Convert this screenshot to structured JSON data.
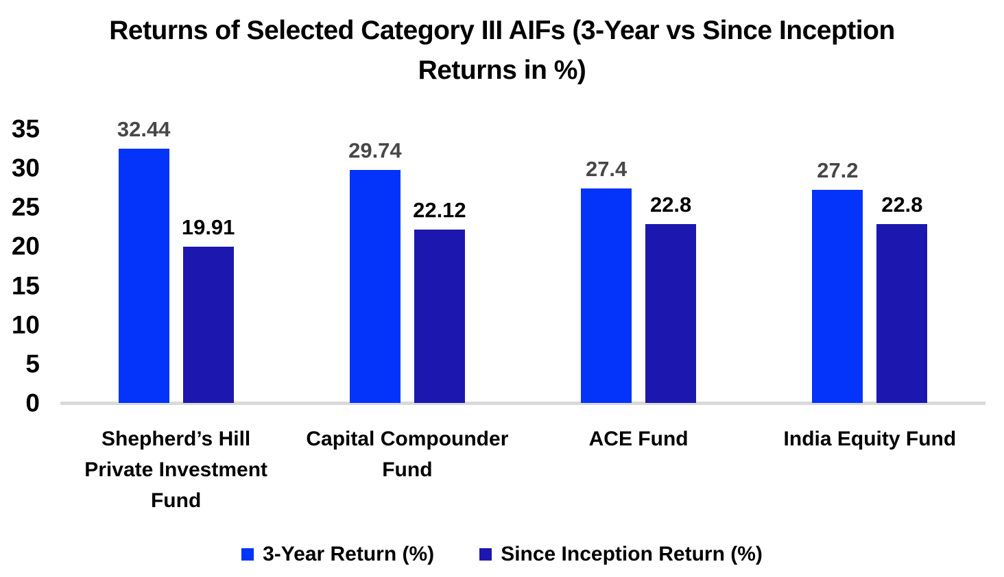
{
  "title": "Returns of Selected Category III AIFs (3-Year vs Since Inception Returns in %)",
  "colors": {
    "series1_bar": "#0433FA",
    "series2_bar": "#1C17AE",
    "series1_value_label": "#474747",
    "series2_value_label": "#000000",
    "axis_line": "#D9D9D9",
    "tick_text": "#000000"
  },
  "chart_data": {
    "type": "bar",
    "title": "Returns of Selected Category III AIFs (3-Year vs Since Inception Returns in %)",
    "categories": [
      "Shepherd’s Hill Private Investment Fund",
      "Capital Compounder Fund",
      "ACE Fund",
      "India Equity Fund"
    ],
    "series": [
      {
        "name": "3-Year Return (%)",
        "values": [
          32.44,
          29.74,
          27.4,
          27.2
        ],
        "labels": [
          "32.44",
          "29.74",
          "27.4",
          "27.2"
        ],
        "color": "#0433FA",
        "label_color": "#474747"
      },
      {
        "name": "Since Inception Return (%)",
        "values": [
          19.91,
          22.12,
          22.8,
          22.8
        ],
        "labels": [
          "19.91",
          "22.12",
          "22.8",
          "22.8"
        ],
        "color": "#1C17AE",
        "label_color": "#000000"
      }
    ],
    "xlabel": "",
    "ylabel": "",
    "y_ticks": [
      0,
      5,
      10,
      15,
      20,
      25,
      30,
      35
    ],
    "ylim": [
      0,
      35
    ],
    "grid": false,
    "legend_position": "bottom"
  },
  "legend": {
    "items": [
      {
        "label": "3-Year Return (%)",
        "color": "#0433FA"
      },
      {
        "label": "Since Inception Return (%)",
        "color": "#1C17AE"
      }
    ]
  }
}
